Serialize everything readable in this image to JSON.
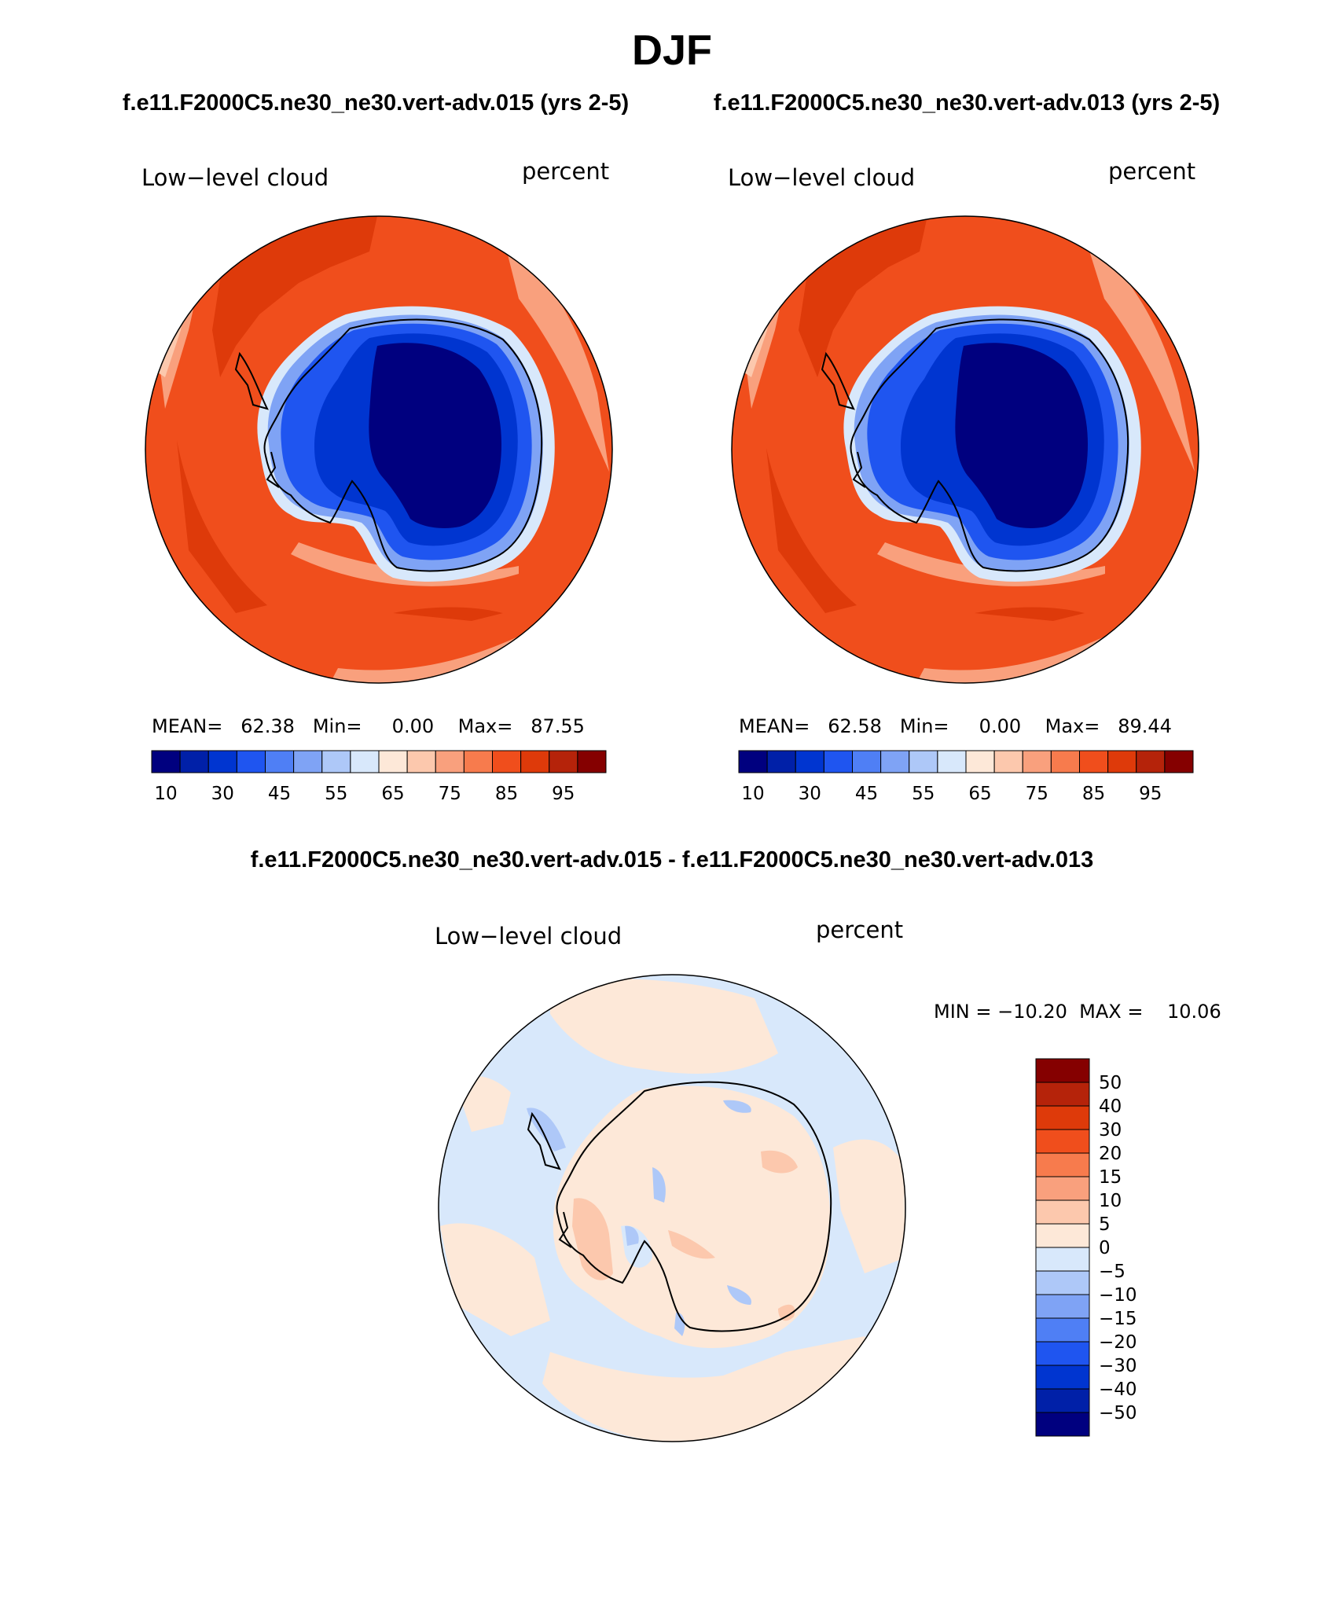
{
  "figure": {
    "season": "DJF",
    "case1_title": "f.e11.F2000C5.ne30_ne30.vert-adv.015 (yrs 2-5)",
    "case2_title": "f.e11.F2000C5.ne30_ne30.vert-adv.013 (yrs 2-5)",
    "diff_title": "f.e11.F2000C5.ne30_ne30.vert-adv.015 - f.e11.F2000C5.ne30_ne30.vert-adv.013"
  },
  "panels": [
    {
      "variable": "Low−level cloud",
      "units": "percent",
      "stats_line": "MEAN=   62.38   Min=     0.00    Max=   87.55",
      "mean": 62.38,
      "min": 0.0,
      "max": 87.55
    },
    {
      "variable": "Low−level cloud",
      "units": "percent",
      "stats_line": "MEAN=   62.58   Min=     0.00    Max=   89.44",
      "mean": 62.58,
      "min": 0.0,
      "max": 89.44
    },
    {
      "variable": "Low−level cloud",
      "units": "percent",
      "stats_line": "MIN = −10.20  MAX =    10.06",
      "min": -10.2,
      "max": 10.06
    }
  ],
  "colorbar_abs": {
    "colors": [
      "#00007f",
      "#0020a8",
      "#0035d0",
      "#1f55f0",
      "#4f7ff5",
      "#7fa3f5",
      "#aec8f8",
      "#d8e8fb",
      "#fde8d8",
      "#fcc8ad",
      "#f9a07d",
      "#f77b4d",
      "#f04e1c",
      "#de3a0a",
      "#b5230a",
      "#850000"
    ],
    "labels": [
      "10",
      "30",
      "45",
      "55",
      "65",
      "75",
      "85",
      "95"
    ]
  },
  "colorbar_diff": {
    "colors": [
      "#850000",
      "#b5230a",
      "#de3a0a",
      "#f04e1c",
      "#f77b4d",
      "#f9a07d",
      "#fcc8ad",
      "#fde8d8",
      "#d8e8fb",
      "#aec8f8",
      "#7fa3f5",
      "#4f7ff5",
      "#1f55f0",
      "#0035d0",
      "#0020a8",
      "#00007f"
    ],
    "labels": [
      "50",
      "40",
      "30",
      "20",
      "15",
      "10",
      "5",
      "0",
      "−5",
      "−10",
      "−15",
      "−20",
      "−30",
      "−40",
      "−50"
    ]
  },
  "map_palette": {
    "ocean_deep": "#de3a0a",
    "ocean": "#f04e1c",
    "ocean_light": "#f77b4d",
    "ocean_pale": "#f9a07d",
    "coast_pale": "#fcc8ad",
    "ice_edge": "#d8e8fb",
    "ice_light": "#7fa3f5",
    "ice": "#1f55f0",
    "ice_mid": "#0035d0",
    "interior": "#00007f",
    "diff_neg": "#d8e8fb",
    "diff_pos": "#fde8d8",
    "diff_pos2": "#fcc8ad",
    "diff_neg2": "#aec8f8"
  }
}
